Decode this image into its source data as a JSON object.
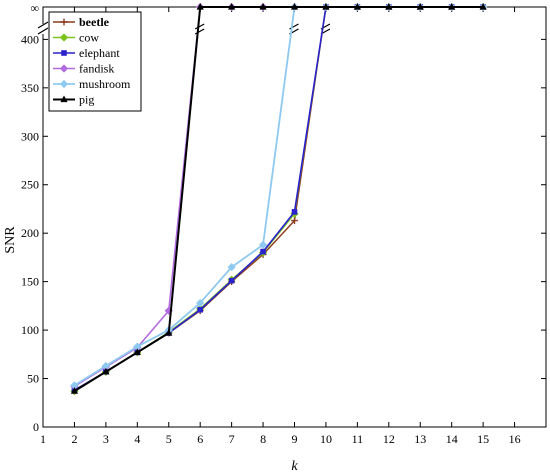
{
  "chart_data": {
    "type": "line",
    "xlabel": "k",
    "ylabel": "SNR",
    "xlim": [
      1,
      17
    ],
    "ylim": [
      0,
      420
    ],
    "x_ticks": [
      1,
      2,
      3,
      4,
      5,
      6,
      7,
      8,
      9,
      10,
      11,
      12,
      13,
      14,
      15,
      16
    ],
    "y_ticks": [
      0,
      50,
      100,
      150,
      200,
      250,
      300,
      350,
      400
    ],
    "infinity_label": "∞",
    "y_axis_break": true,
    "grid": false,
    "legend_position": "top-left",
    "series": [
      {
        "name": "beetle",
        "color": "#8B3A1A",
        "marker": "plus",
        "width": 1.4,
        "x": [
          2,
          3,
          4,
          5,
          6,
          7,
          8,
          9,
          10,
          11,
          12,
          13,
          14,
          15
        ],
        "y": [
          37,
          57,
          77,
          97,
          120,
          150,
          178,
          213,
          "inf",
          "inf",
          "inf",
          "inf",
          "inf",
          "inf"
        ]
      },
      {
        "name": "cow",
        "color": "#7DC31C",
        "marker": "diamond",
        "width": 1.4,
        "x": [
          2,
          3,
          4,
          5,
          6,
          7,
          8,
          9,
          10,
          11,
          12,
          13,
          14,
          15
        ],
        "y": [
          37,
          57,
          77,
          98,
          122,
          152,
          180,
          220,
          "inf",
          "inf",
          "inf",
          "inf",
          "inf",
          "inf"
        ]
      },
      {
        "name": "elephant",
        "color": "#2A22CC",
        "marker": "square",
        "width": 1.6,
        "x": [
          2,
          3,
          4,
          5,
          6,
          7,
          8,
          9,
          10,
          11,
          12,
          13,
          14,
          15
        ],
        "y": [
          38,
          57,
          77,
          97,
          121,
          151,
          181,
          222,
          "inf",
          "inf",
          "inf",
          "inf",
          "inf",
          "inf"
        ]
      },
      {
        "name": "fandisk",
        "color": "#B36BE0",
        "marker": "diamond",
        "width": 1.6,
        "x": [
          2,
          3,
          4,
          5,
          6,
          7,
          8,
          9,
          10,
          11,
          12,
          13,
          14,
          15
        ],
        "y": [
          42,
          62,
          82,
          120,
          "inf",
          "inf",
          "inf",
          "inf",
          "inf",
          "inf",
          "inf",
          "inf",
          "inf",
          "inf"
        ]
      },
      {
        "name": "mushroom",
        "color": "#8EC9F0",
        "marker": "diamond",
        "width": 1.8,
        "x": [
          2,
          3,
          4,
          5,
          6,
          7,
          8,
          9,
          10,
          11,
          12,
          13,
          14,
          15
        ],
        "y": [
          43,
          63,
          83,
          100,
          128,
          165,
          188,
          "inf",
          "inf",
          "inf",
          "inf",
          "inf",
          "inf",
          "inf"
        ]
      },
      {
        "name": "pig",
        "color": "#000000",
        "marker": "triangle",
        "width": 2,
        "x": [
          2,
          3,
          4,
          5,
          6,
          7,
          8,
          9,
          10,
          11,
          12,
          13,
          14,
          15
        ],
        "y": [
          37,
          57,
          77,
          97,
          "inf",
          "inf",
          "inf",
          "inf",
          "inf",
          "inf",
          "inf",
          "inf",
          "inf",
          "inf"
        ]
      }
    ]
  }
}
